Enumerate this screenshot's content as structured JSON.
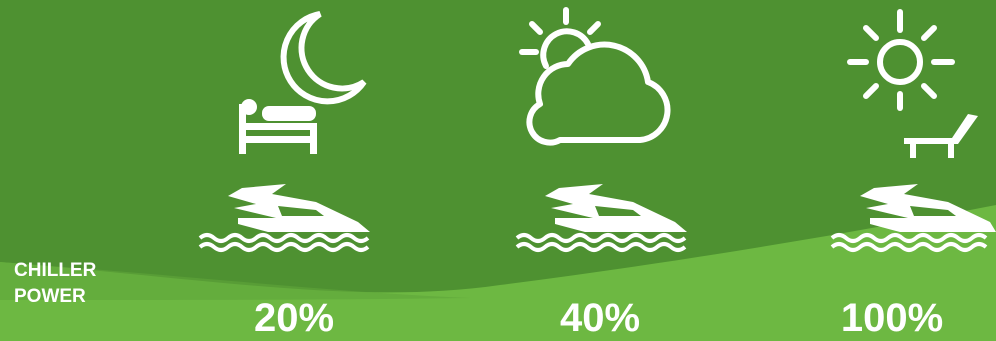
{
  "colors": {
    "background": "#4e9131",
    "band": "#6db842",
    "icon": "#ffffff"
  },
  "label": {
    "line1": "CHILLER",
    "line2": "POWER"
  },
  "modes": [
    {
      "icon": "moon-bed-icon",
      "percent": "20%"
    },
    {
      "icon": "sun-cloud-icon",
      "percent": "40%"
    },
    {
      "icon": "sun-lounger-icon",
      "percent": "100%"
    }
  ]
}
